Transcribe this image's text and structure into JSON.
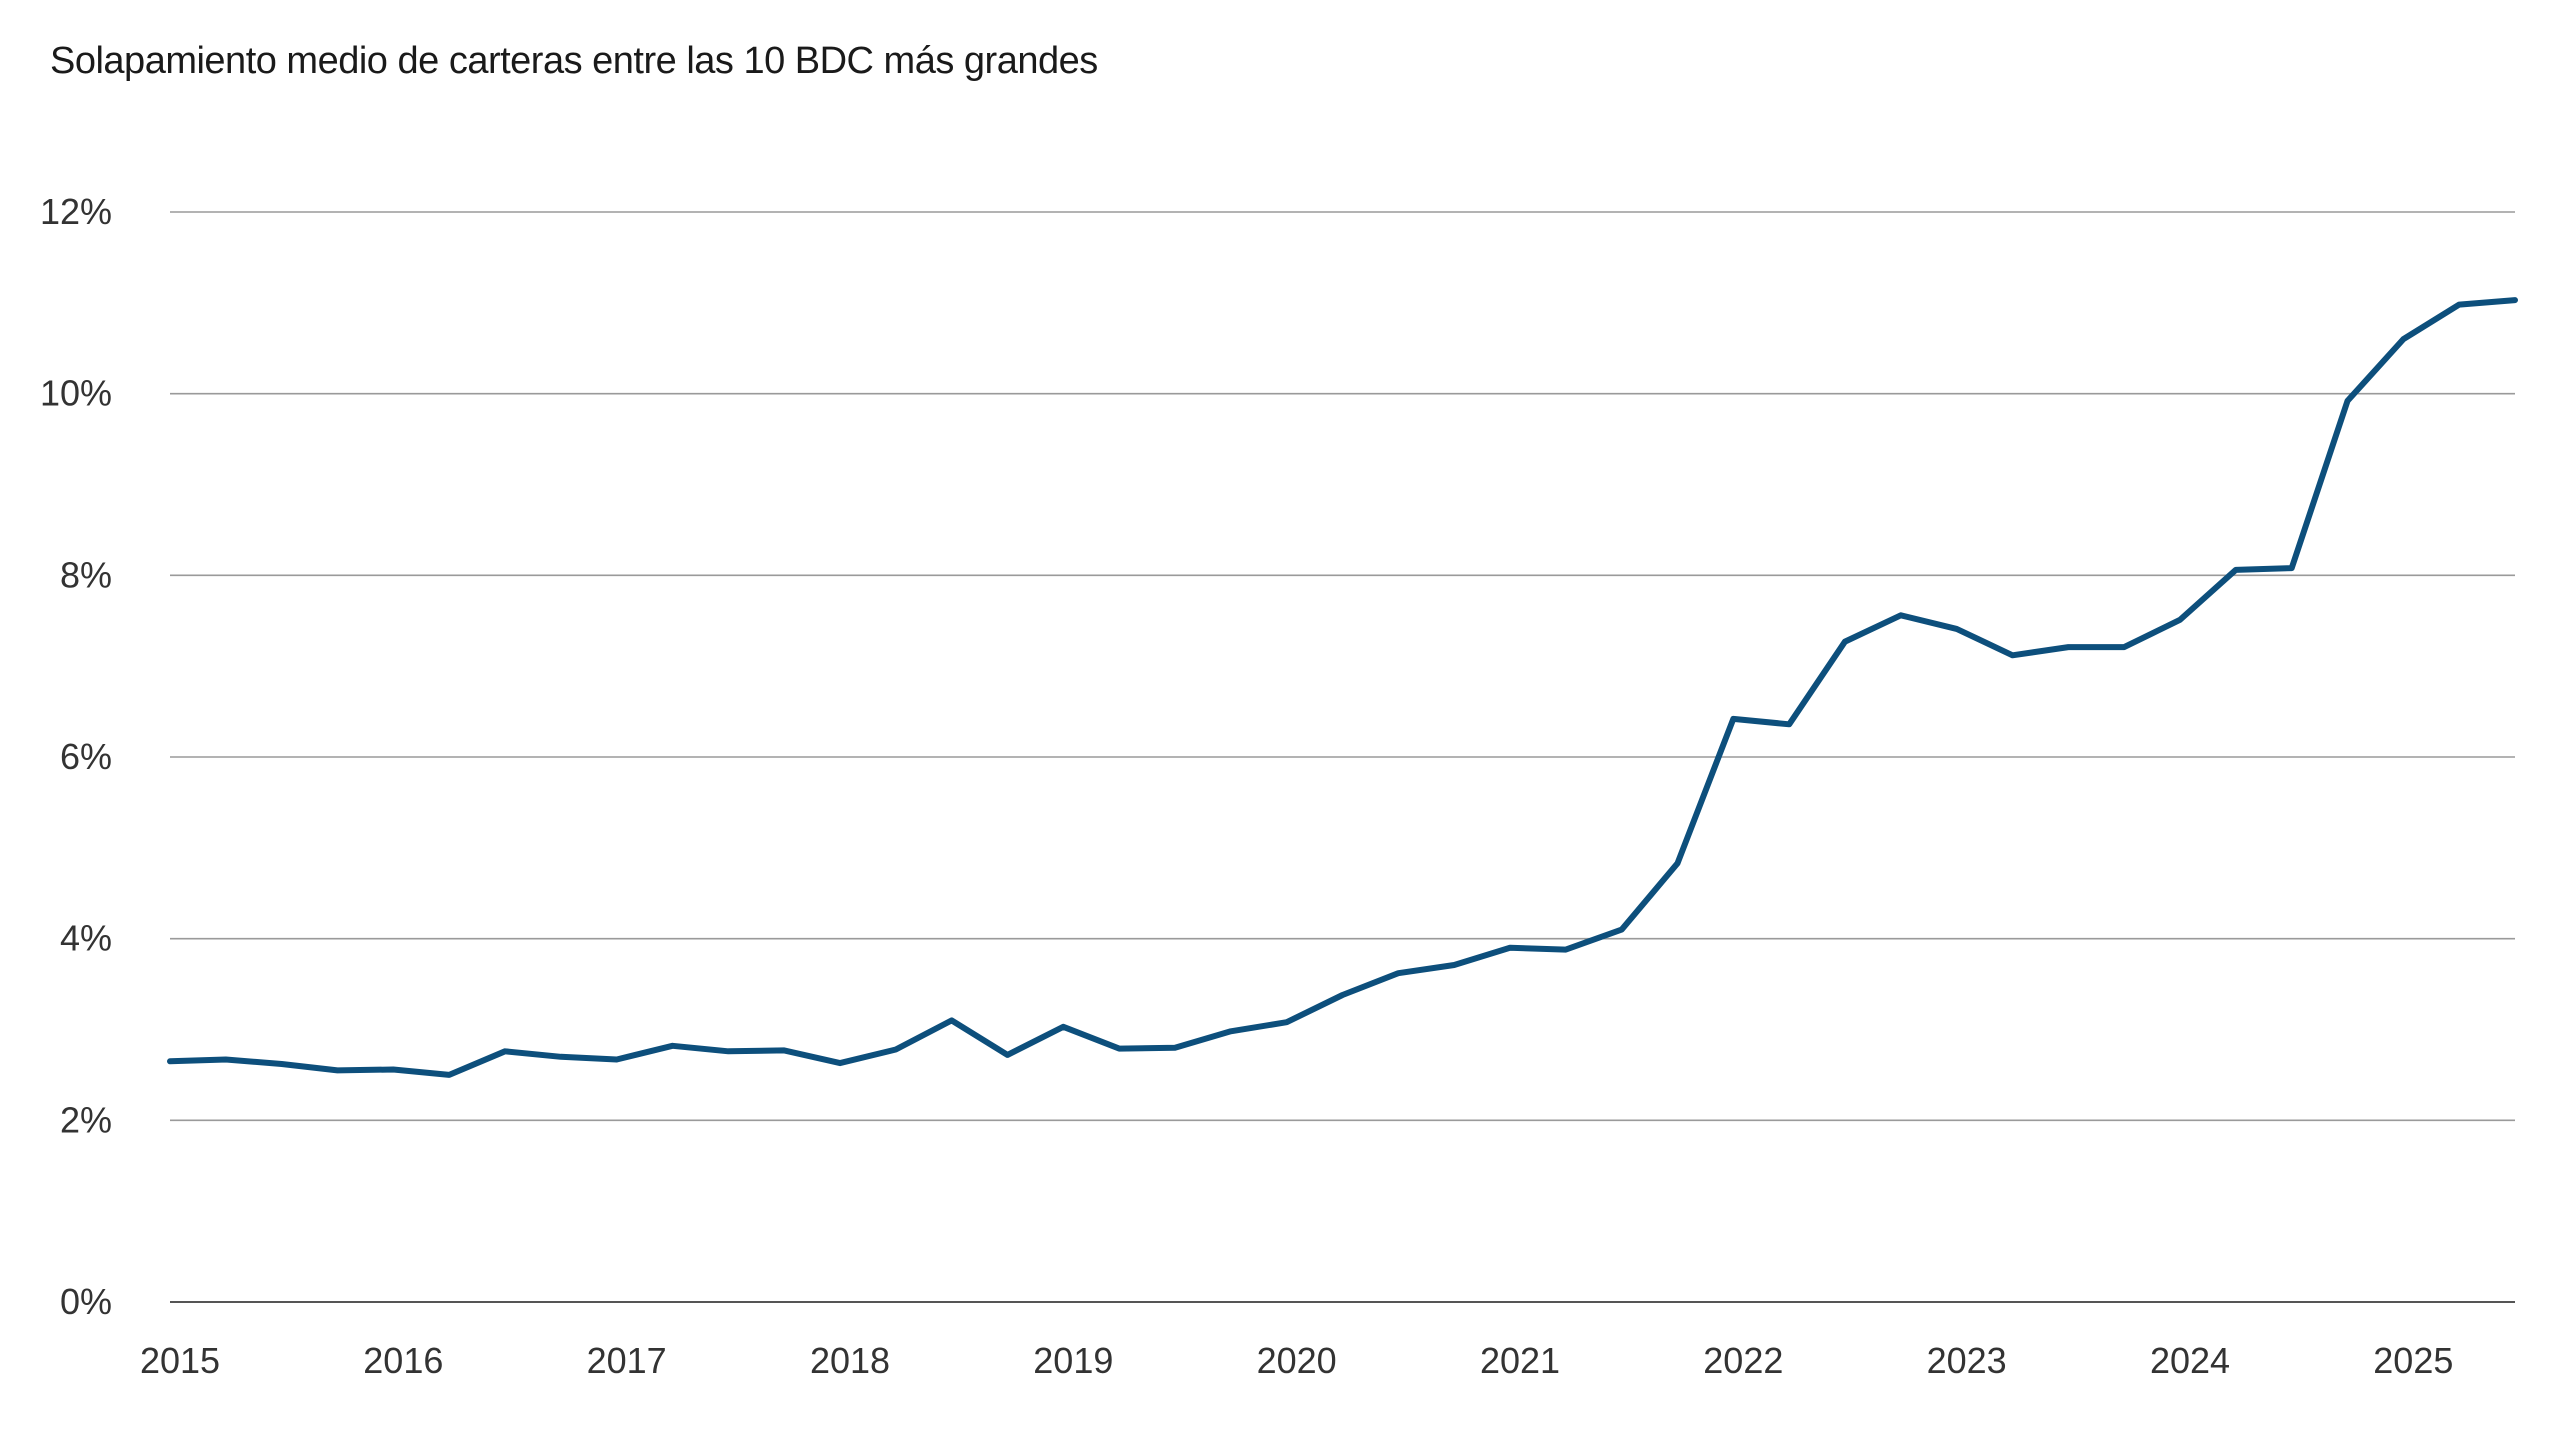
{
  "chart_data": {
    "type": "line",
    "title": "Solapamiento medio de carteras entre las 10 BDC más grandes",
    "xlabel": "",
    "ylabel": "",
    "ylim": [
      0,
      12
    ],
    "xlim": [
      2015,
      2025.5
    ],
    "y_ticks": [
      "0%",
      "2%",
      "4%",
      "6%",
      "8%",
      "10%",
      "12%"
    ],
    "x_ticks": [
      "2015",
      "2016",
      "2017",
      "2018",
      "2019",
      "2020",
      "2021",
      "2022",
      "2023",
      "2024",
      "2025"
    ],
    "grid": true,
    "legend": "none",
    "colors": {
      "line": "#0d4f7c",
      "grid": "#9a9a9a",
      "text": "#333333"
    },
    "series": [
      {
        "x": [
          2015.0,
          2015.25,
          2015.5,
          2015.75,
          2016.0,
          2016.25,
          2016.5,
          2016.75,
          2017.0,
          2017.25,
          2017.5,
          2017.75,
          2018.0,
          2018.25,
          2018.5,
          2018.75,
          2019.0,
          2019.25,
          2019.5,
          2019.75,
          2020.0,
          2020.25,
          2020.5,
          2020.75,
          2021.0,
          2021.25,
          2021.5,
          2021.75,
          2022.0,
          2022.25,
          2022.5,
          2022.75,
          2023.0,
          2023.25,
          2023.5,
          2023.75,
          2024.0,
          2024.25,
          2024.5,
          2024.75,
          2025.0,
          2025.25,
          2025.5
        ],
        "y": [
          2.65,
          2.67,
          2.62,
          2.55,
          2.56,
          2.5,
          2.76,
          2.7,
          2.67,
          2.82,
          2.76,
          2.77,
          2.63,
          2.78,
          3.1,
          2.72,
          3.03,
          2.79,
          2.8,
          2.98,
          3.08,
          3.38,
          3.62,
          3.71,
          3.9,
          3.88,
          4.1,
          4.83,
          6.42,
          6.36,
          7.27,
          7.56,
          7.41,
          7.12,
          7.21,
          7.21,
          7.51,
          8.06,
          8.08,
          9.92,
          10.6,
          10.98,
          11.03
        ]
      }
    ]
  }
}
